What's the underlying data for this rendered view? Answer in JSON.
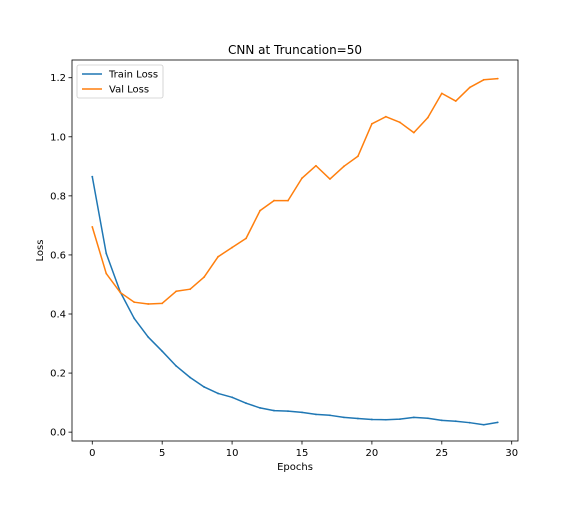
{
  "chart_data": {
    "type": "line",
    "title": "CNN at Truncation=50",
    "xlabel": "Epochs",
    "ylabel": "Loss",
    "xlim": [
      -1.45,
      30.45
    ],
    "ylim": [
      -0.03,
      1.26
    ],
    "xticks": [
      0,
      5,
      10,
      15,
      20,
      25,
      30
    ],
    "yticks": [
      0.0,
      0.2,
      0.4,
      0.6,
      0.8,
      1.0,
      1.2
    ],
    "xtick_labels": [
      "0",
      "5",
      "10",
      "15",
      "20",
      "25",
      "30"
    ],
    "ytick_labels": [
      "0.0",
      "0.2",
      "0.4",
      "0.6",
      "0.8",
      "1.0",
      "1.2"
    ],
    "grid": false,
    "legend_position": "top-left",
    "x": [
      0,
      1,
      2,
      3,
      4,
      5,
      6,
      7,
      8,
      9,
      10,
      11,
      12,
      13,
      14,
      15,
      16,
      17,
      18,
      19,
      20,
      21,
      22,
      23,
      24,
      25,
      26,
      27,
      28,
      29
    ],
    "series": [
      {
        "name": "Train Loss",
        "color": "#1f77b4",
        "values": [
          0.865,
          0.605,
          0.475,
          0.385,
          0.322,
          0.274,
          0.224,
          0.185,
          0.153,
          0.131,
          0.118,
          0.098,
          0.082,
          0.073,
          0.071,
          0.067,
          0.06,
          0.057,
          0.05,
          0.046,
          0.043,
          0.042,
          0.044,
          0.05,
          0.047,
          0.04,
          0.037,
          0.032,
          0.025,
          0.033
        ]
      },
      {
        "name": "Val Loss",
        "color": "#ff7f0e",
        "values": [
          0.695,
          0.537,
          0.473,
          0.44,
          0.434,
          0.436,
          0.477,
          0.484,
          0.525,
          0.594,
          0.625,
          0.656,
          0.75,
          0.784,
          0.784,
          0.86,
          0.902,
          0.857,
          0.9,
          0.934,
          1.044,
          1.068,
          1.049,
          1.014,
          1.065,
          1.147,
          1.121,
          1.167,
          1.193,
          1.197
        ]
      }
    ]
  }
}
